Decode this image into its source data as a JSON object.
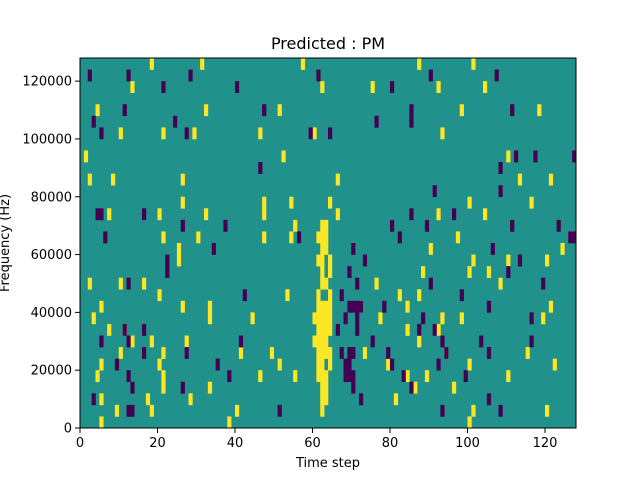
{
  "chart_data": {
    "type": "heatmap",
    "title": "Predicted : PM",
    "xlabel": "Time step",
    "ylabel": "Frequency (Hz)",
    "xlim": [
      0,
      128
    ],
    "ylim": [
      0,
      128000
    ],
    "x_ticks": [
      0,
      20,
      40,
      60,
      80,
      100,
      120
    ],
    "y_ticks": [
      0,
      20000,
      40000,
      60000,
      80000,
      100000,
      120000
    ],
    "grid": false,
    "colors": {
      "background": "#21918c",
      "positive": "#fde725",
      "negative": "#440154"
    },
    "values_legend": {
      "background": 0,
      "positive": 1,
      "negative": -1
    },
    "bin_width_time": 1,
    "bin_height_hz": 4000,
    "positive_cells": [
      [
        18,
        124000
      ],
      [
        31,
        124000
      ],
      [
        57,
        124000
      ],
      [
        87,
        124000
      ],
      [
        101,
        124000
      ],
      [
        13,
        116000
      ],
      [
        62,
        116000
      ],
      [
        75,
        116000
      ],
      [
        92,
        116000
      ],
      [
        104,
        116000
      ],
      [
        4,
        108000
      ],
      [
        32,
        108000
      ],
      [
        51,
        108000
      ],
      [
        98,
        108000
      ],
      [
        118,
        108000
      ],
      [
        10,
        100000
      ],
      [
        21,
        100000
      ],
      [
        29,
        100000
      ],
      [
        46,
        100000
      ],
      [
        60,
        100000
      ],
      [
        93,
        100000
      ],
      [
        1,
        92000
      ],
      [
        52,
        92000
      ],
      [
        110,
        92000
      ],
      [
        2,
        84000
      ],
      [
        8,
        84000
      ],
      [
        26,
        84000
      ],
      [
        66,
        84000
      ],
      [
        113,
        84000
      ],
      [
        121,
        84000
      ],
      [
        26,
        76000
      ],
      [
        47,
        76000
      ],
      [
        54,
        76000
      ],
      [
        64,
        76000
      ],
      [
        100,
        76000
      ],
      [
        116,
        76000
      ],
      [
        7,
        72000
      ],
      [
        20,
        72000
      ],
      [
        32,
        72000
      ],
      [
        47,
        72000
      ],
      [
        66,
        72000
      ],
      [
        92,
        72000
      ],
      [
        104,
        72000
      ],
      [
        62,
        68000
      ],
      [
        63,
        68000
      ],
      [
        55,
        68000
      ],
      [
        21,
        64000
      ],
      [
        30,
        64000
      ],
      [
        47,
        64000
      ],
      [
        54,
        64000
      ],
      [
        61,
        64000
      ],
      [
        62,
        64000
      ],
      [
        63,
        64000
      ],
      [
        97,
        64000
      ],
      [
        25,
        60000
      ],
      [
        62,
        60000
      ],
      [
        63,
        60000
      ],
      [
        90,
        60000
      ],
      [
        124,
        60000
      ],
      [
        25,
        56000
      ],
      [
        61,
        56000
      ],
      [
        62,
        56000
      ],
      [
        64,
        56000
      ],
      [
        101,
        56000
      ],
      [
        110,
        56000
      ],
      [
        120,
        56000
      ],
      [
        62,
        52000
      ],
      [
        64,
        52000
      ],
      [
        88,
        52000
      ],
      [
        100,
        52000
      ],
      [
        105,
        52000
      ],
      [
        2,
        48000
      ],
      [
        10,
        48000
      ],
      [
        16,
        48000
      ],
      [
        62,
        48000
      ],
      [
        63,
        48000
      ],
      [
        76,
        48000
      ],
      [
        108,
        48000
      ],
      [
        20,
        44000
      ],
      [
        53,
        44000
      ],
      [
        61,
        44000
      ],
      [
        64,
        44000
      ],
      [
        82,
        44000
      ],
      [
        87,
        44000
      ],
      [
        5,
        40000
      ],
      [
        26,
        40000
      ],
      [
        33,
        40000
      ],
      [
        61,
        40000
      ],
      [
        62,
        40000
      ],
      [
        63,
        40000
      ],
      [
        64,
        40000
      ],
      [
        72,
        40000
      ],
      [
        84,
        40000
      ],
      [
        121,
        40000
      ],
      [
        3,
        36000
      ],
      [
        33,
        36000
      ],
      [
        44,
        36000
      ],
      [
        60,
        36000
      ],
      [
        61,
        36000
      ],
      [
        62,
        36000
      ],
      [
        63,
        36000
      ],
      [
        64,
        36000
      ],
      [
        77,
        36000
      ],
      [
        93,
        36000
      ],
      [
        98,
        36000
      ],
      [
        119,
        36000
      ],
      [
        7,
        32000
      ],
      [
        11,
        32000
      ],
      [
        61,
        32000
      ],
      [
        62,
        32000
      ],
      [
        63,
        32000
      ],
      [
        64,
        32000
      ],
      [
        84,
        32000
      ],
      [
        92,
        32000
      ],
      [
        13,
        28000
      ],
      [
        18,
        28000
      ],
      [
        27,
        28000
      ],
      [
        60,
        28000
      ],
      [
        61,
        28000
      ],
      [
        62,
        28000
      ],
      [
        63,
        28000
      ],
      [
        87,
        28000
      ],
      [
        10,
        24000
      ],
      [
        21,
        24000
      ],
      [
        41,
        24000
      ],
      [
        49,
        24000
      ],
      [
        61,
        24000
      ],
      [
        62,
        24000
      ],
      [
        63,
        24000
      ],
      [
        64,
        24000
      ],
      [
        73,
        24000
      ],
      [
        94,
        24000
      ],
      [
        115,
        24000
      ],
      [
        5,
        20000
      ],
      [
        20,
        20000
      ],
      [
        51,
        20000
      ],
      [
        61,
        20000
      ],
      [
        62,
        20000
      ],
      [
        64,
        20000
      ],
      [
        79,
        20000
      ],
      [
        100,
        20000
      ],
      [
        122,
        20000
      ],
      [
        4,
        16000
      ],
      [
        21,
        16000
      ],
      [
        46,
        16000
      ],
      [
        55,
        16000
      ],
      [
        61,
        16000
      ],
      [
        62,
        16000
      ],
      [
        63,
        16000
      ],
      [
        84,
        16000
      ],
      [
        89,
        16000
      ],
      [
        110,
        16000
      ],
      [
        21,
        12000
      ],
      [
        33,
        12000
      ],
      [
        62,
        12000
      ],
      [
        63,
        12000
      ],
      [
        86,
        12000
      ],
      [
        96,
        12000
      ],
      [
        5,
        8000
      ],
      [
        17,
        8000
      ],
      [
        28,
        8000
      ],
      [
        62,
        8000
      ],
      [
        63,
        8000
      ],
      [
        81,
        8000
      ],
      [
        9,
        4000
      ],
      [
        18,
        4000
      ],
      [
        40,
        4000
      ],
      [
        62,
        4000
      ],
      [
        101,
        4000
      ],
      [
        120,
        4000
      ],
      [
        5,
        0
      ],
      [
        38,
        0
      ],
      [
        100,
        0
      ]
    ],
    "negative_cells": [
      [
        2,
        120000
      ],
      [
        12,
        120000
      ],
      [
        28,
        120000
      ],
      [
        61,
        120000
      ],
      [
        90,
        120000
      ],
      [
        107,
        120000
      ],
      [
        21,
        116000
      ],
      [
        40,
        116000
      ],
      [
        80,
        116000
      ],
      [
        11,
        108000
      ],
      [
        47,
        108000
      ],
      [
        85,
        108000
      ],
      [
        111,
        108000
      ],
      [
        3,
        104000
      ],
      [
        24,
        104000
      ],
      [
        76,
        104000
      ],
      [
        85,
        104000
      ],
      [
        5,
        100000
      ],
      [
        27,
        100000
      ],
      [
        59,
        100000
      ],
      [
        64,
        100000
      ],
      [
        112,
        92000
      ],
      [
        117,
        92000
      ],
      [
        127,
        92000
      ],
      [
        46,
        88000
      ],
      [
        108,
        88000
      ],
      [
        91,
        80000
      ],
      [
        108,
        80000
      ],
      [
        4,
        72000
      ],
      [
        5,
        72000
      ],
      [
        16,
        72000
      ],
      [
        85,
        72000
      ],
      [
        96,
        72000
      ],
      [
        26,
        68000
      ],
      [
        37,
        68000
      ],
      [
        80,
        68000
      ],
      [
        89,
        68000
      ],
      [
        111,
        68000
      ],
      [
        123,
        68000
      ],
      [
        6,
        64000
      ],
      [
        56,
        64000
      ],
      [
        82,
        64000
      ],
      [
        126,
        64000
      ],
      [
        127,
        64000
      ],
      [
        34,
        60000
      ],
      [
        70,
        60000
      ],
      [
        106,
        60000
      ],
      [
        22,
        56000
      ],
      [
        73,
        56000
      ],
      [
        113,
        56000
      ],
      [
        22,
        52000
      ],
      [
        69,
        52000
      ],
      [
        110,
        52000
      ],
      [
        12,
        48000
      ],
      [
        71,
        48000
      ],
      [
        90,
        48000
      ],
      [
        119,
        48000
      ],
      [
        42,
        44000
      ],
      [
        67,
        44000
      ],
      [
        98,
        44000
      ],
      [
        69,
        40000
      ],
      [
        70,
        40000
      ],
      [
        71,
        40000
      ],
      [
        72,
        40000
      ],
      [
        78,
        40000
      ],
      [
        105,
        40000
      ],
      [
        68,
        36000
      ],
      [
        71,
        36000
      ],
      [
        88,
        36000
      ],
      [
        116,
        36000
      ],
      [
        11,
        32000
      ],
      [
        16,
        32000
      ],
      [
        66,
        32000
      ],
      [
        71,
        32000
      ],
      [
        87,
        32000
      ],
      [
        91,
        32000
      ],
      [
        5,
        28000
      ],
      [
        12,
        28000
      ],
      [
        41,
        28000
      ],
      [
        75,
        28000
      ],
      [
        93,
        28000
      ],
      [
        103,
        28000
      ],
      [
        116,
        28000
      ],
      [
        16,
        24000
      ],
      [
        27,
        24000
      ],
      [
        67,
        24000
      ],
      [
        69,
        24000
      ],
      [
        70,
        24000
      ],
      [
        79,
        24000
      ],
      [
        94,
        24000
      ],
      [
        105,
        24000
      ],
      [
        9,
        20000
      ],
      [
        35,
        20000
      ],
      [
        68,
        20000
      ],
      [
        69,
        20000
      ],
      [
        80,
        20000
      ],
      [
        92,
        20000
      ],
      [
        12,
        16000
      ],
      [
        38,
        16000
      ],
      [
        68,
        16000
      ],
      [
        69,
        16000
      ],
      [
        70,
        16000
      ],
      [
        83,
        16000
      ],
      [
        99,
        16000
      ],
      [
        13,
        12000
      ],
      [
        26,
        12000
      ],
      [
        70,
        12000
      ],
      [
        85,
        12000
      ],
      [
        3,
        8000
      ],
      [
        72,
        8000
      ],
      [
        105,
        8000
      ],
      [
        12,
        4000
      ],
      [
        13,
        4000
      ],
      [
        51,
        4000
      ],
      [
        93,
        4000
      ],
      [
        108,
        4000
      ]
    ]
  }
}
